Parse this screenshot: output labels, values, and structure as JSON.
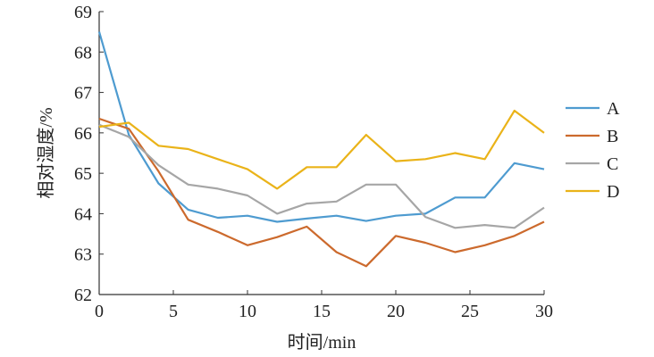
{
  "chart_data": {
    "type": "line",
    "xlabel": "时间/min",
    "ylabel": "相对湿度/%",
    "xlim": [
      0,
      30
    ],
    "ylim": [
      62,
      69
    ],
    "xticks": [
      0,
      5,
      10,
      15,
      20,
      25,
      30
    ],
    "yticks": [
      62,
      63,
      64,
      65,
      66,
      67,
      68,
      69
    ],
    "grid": false,
    "legend_position": "right",
    "x": [
      0,
      2,
      4,
      6,
      8,
      10,
      12,
      14,
      16,
      18,
      20,
      22,
      24,
      26,
      28,
      30
    ],
    "series": [
      {
        "name": "A",
        "color": "#4e9bd0",
        "values": [
          68.5,
          65.95,
          64.75,
          64.1,
          63.9,
          63.95,
          63.8,
          63.88,
          63.95,
          63.82,
          63.95,
          64.0,
          64.4,
          64.4,
          65.25,
          65.1
        ]
      },
      {
        "name": "B",
        "color": "#cc6a2d",
        "values": [
          66.35,
          66.1,
          65.05,
          63.85,
          63.55,
          63.22,
          63.42,
          63.68,
          63.05,
          62.7,
          63.45,
          63.28,
          63.05,
          63.22,
          63.45,
          63.8
        ]
      },
      {
        "name": "C",
        "color": "#a6a6a6",
        "values": [
          66.2,
          65.9,
          65.2,
          64.72,
          64.62,
          64.45,
          64.0,
          64.25,
          64.3,
          64.72,
          64.72,
          63.92,
          63.65,
          63.72,
          63.65,
          64.15
        ]
      },
      {
        "name": "D",
        "color": "#eab319",
        "values": [
          66.15,
          66.25,
          65.68,
          65.6,
          65.35,
          65.1,
          64.62,
          65.15,
          65.15,
          65.95,
          65.3,
          65.35,
          65.5,
          65.35,
          66.55,
          66.0
        ]
      }
    ]
  }
}
